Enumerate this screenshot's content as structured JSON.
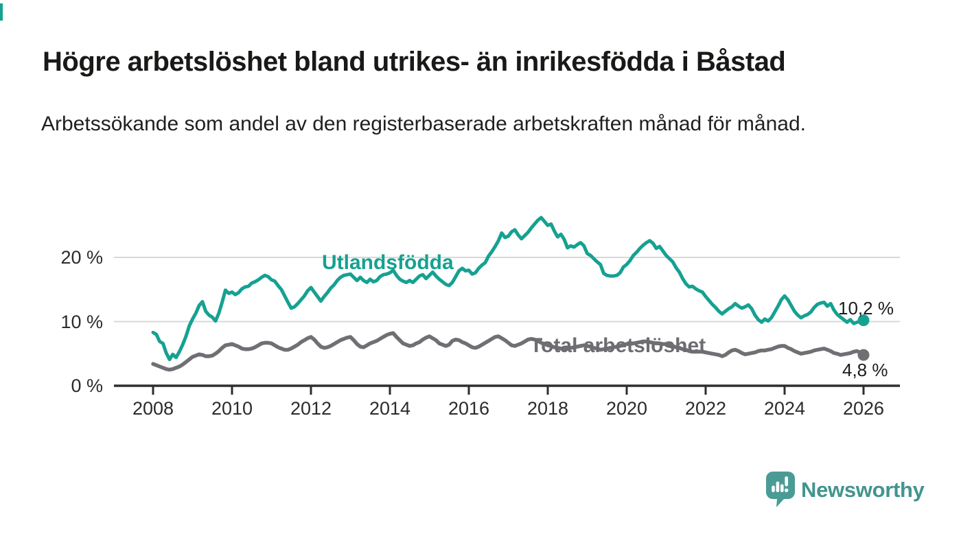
{
  "header": {
    "title": "Högre arbetslöshet bland utrikes- än inrikesfödda i Båstad",
    "subtitle": "Arbetssökande som andel av den registerbaserade arbetskraften månad för månad."
  },
  "colors": {
    "accent_teal": "#16a191",
    "line_gray": "#6f6f74",
    "axis": "#2e2e2e",
    "grid": "#d8d8d8",
    "text": "#191917"
  },
  "chart_data": {
    "type": "line",
    "title": "Högre arbetslöshet bland utrikes- än inrikesfödda i Båstad",
    "xlabel": "",
    "ylabel": "",
    "grid": "horizontal",
    "legend_position": "inline-labels",
    "x_unit": "year (monthly data)",
    "x_start": 2008,
    "x_step": 0.0833333,
    "xlim": [
      2007,
      2026.95
    ],
    "ylim": [
      0,
      27.5
    ],
    "x_ticks": [
      {
        "year": 2008,
        "label": "2008"
      },
      {
        "year": 2010,
        "label": "2010"
      },
      {
        "year": 2012,
        "label": "2012"
      },
      {
        "year": 2014,
        "label": "2014"
      },
      {
        "year": 2016,
        "label": "2016"
      },
      {
        "year": 2018,
        "label": "2018"
      },
      {
        "year": 2020,
        "label": "2020"
      },
      {
        "year": 2022,
        "label": "2022"
      },
      {
        "year": 2024,
        "label": "2024"
      },
      {
        "year": 2026,
        "label": "2026"
      }
    ],
    "y_ticks": [
      {
        "value": 0,
        "label": "0 %"
      },
      {
        "value": 10,
        "label": "10 %"
      },
      {
        "value": 20,
        "label": "20 %"
      }
    ],
    "series": [
      {
        "name": "Utlandsfödda",
        "color": "#16a191",
        "end_label": "10,2 %",
        "end_value": 10.2,
        "values": [
          8.3,
          8.0,
          6.9,
          6.6,
          5.1,
          4.1,
          4.9,
          4.4,
          5.3,
          6.4,
          7.7,
          9.3,
          10.4,
          11.3,
          12.5,
          13.1,
          11.6,
          11.0,
          10.7,
          10.1,
          11.3,
          13.0,
          14.9,
          14.4,
          14.6,
          14.2,
          14.5,
          15.1,
          15.4,
          15.5,
          16.0,
          16.2,
          16.5,
          16.9,
          17.2,
          17.0,
          16.5,
          16.3,
          15.6,
          15.0,
          14.0,
          13.0,
          12.1,
          12.3,
          12.8,
          13.4,
          14.0,
          14.8,
          15.3,
          14.6,
          13.9,
          13.2,
          13.9,
          14.5,
          15.2,
          15.7,
          16.4,
          16.9,
          17.2,
          17.3,
          17.4,
          16.9,
          16.4,
          16.9,
          16.4,
          16.1,
          16.6,
          16.2,
          16.4,
          17.0,
          17.3,
          17.4,
          17.6,
          18.0,
          17.2,
          16.6,
          16.3,
          16.1,
          16.4,
          16.1,
          16.6,
          17.1,
          17.3,
          16.7,
          17.2,
          17.7,
          17.1,
          16.6,
          16.2,
          15.8,
          15.6,
          16.1,
          17.0,
          17.9,
          18.3,
          17.9,
          18.0,
          17.4,
          17.6,
          18.3,
          18.8,
          19.2,
          20.2,
          20.9,
          21.7,
          22.6,
          23.8,
          23.1,
          23.3,
          24.0,
          24.3,
          23.5,
          22.9,
          23.4,
          23.9,
          24.6,
          25.2,
          25.8,
          26.2,
          25.6,
          25.0,
          25.2,
          24.1,
          23.2,
          23.6,
          22.8,
          21.5,
          21.8,
          21.6,
          22.0,
          22.3,
          21.8,
          20.6,
          20.3,
          19.8,
          19.3,
          18.9,
          17.5,
          17.2,
          17.1,
          17.1,
          17.2,
          17.6,
          18.5,
          18.9,
          19.5,
          20.3,
          20.8,
          21.4,
          21.9,
          22.3,
          22.6,
          22.2,
          21.4,
          21.7,
          21.0,
          20.3,
          19.8,
          19.3,
          18.4,
          17.7,
          16.7,
          15.9,
          15.4,
          15.5,
          15.1,
          14.8,
          14.6,
          13.9,
          13.3,
          12.7,
          12.2,
          11.6,
          11.2,
          11.6,
          12.0,
          12.3,
          12.8,
          12.4,
          12.1,
          12.3,
          12.6,
          12.0,
          11.0,
          10.3,
          9.9,
          10.4,
          10.1,
          10.6,
          11.5,
          12.4,
          13.4,
          14.0,
          13.4,
          12.5,
          11.6,
          11.0,
          10.6,
          10.9,
          11.1,
          11.5,
          12.2,
          12.7,
          12.9,
          13.0,
          12.4,
          12.8,
          11.8,
          11.1,
          10.7,
          10.3,
          9.9,
          10.3,
          9.7,
          9.9,
          10.0,
          10.2
        ]
      },
      {
        "name": "Total arbetslöshet",
        "color": "#6f6f74",
        "end_label": "4,8 %",
        "end_value": 4.8,
        "values": [
          3.4,
          3.2,
          3.0,
          2.8,
          2.6,
          2.5,
          2.6,
          2.8,
          3.0,
          3.3,
          3.7,
          4.1,
          4.5,
          4.7,
          4.9,
          4.8,
          4.6,
          4.6,
          4.7,
          5.0,
          5.4,
          5.9,
          6.3,
          6.4,
          6.5,
          6.3,
          6.1,
          5.8,
          5.7,
          5.7,
          5.8,
          6.0,
          6.3,
          6.6,
          6.7,
          6.7,
          6.6,
          6.3,
          6.0,
          5.8,
          5.6,
          5.6,
          5.8,
          6.1,
          6.4,
          6.8,
          7.1,
          7.4,
          7.6,
          7.2,
          6.6,
          6.1,
          5.9,
          6.0,
          6.2,
          6.5,
          6.8,
          7.1,
          7.3,
          7.5,
          7.6,
          7.1,
          6.5,
          6.1,
          6.0,
          6.3,
          6.6,
          6.8,
          7.0,
          7.3,
          7.6,
          7.9,
          8.1,
          8.2,
          7.6,
          7.1,
          6.6,
          6.4,
          6.2,
          6.3,
          6.6,
          6.8,
          7.2,
          7.5,
          7.7,
          7.4,
          7.1,
          6.6,
          6.4,
          6.2,
          6.4,
          7.0,
          7.2,
          7.1,
          6.8,
          6.6,
          6.3,
          6.0,
          5.9,
          6.1,
          6.4,
          6.7,
          7.0,
          7.3,
          7.6,
          7.7,
          7.4,
          7.1,
          6.7,
          6.3,
          6.2,
          6.4,
          6.6,
          6.9,
          7.2,
          7.3,
          7.2,
          7.0,
          6.7,
          6.5,
          6.3,
          6.2,
          6.0,
          5.9,
          5.8,
          5.7,
          5.8,
          5.9,
          6.0,
          6.1,
          6.2,
          6.3,
          6.2,
          6.1,
          5.9,
          5.8,
          5.6,
          5.7,
          5.8,
          5.9,
          6.0,
          6.1,
          6.2,
          6.4,
          6.5,
          6.5,
          6.6,
          6.7,
          6.8,
          6.9,
          6.9,
          6.8,
          6.7,
          6.6,
          6.6,
          6.5,
          6.5,
          6.4,
          6.2,
          6.0,
          5.9,
          5.7,
          5.6,
          5.4,
          5.3,
          5.3,
          5.3,
          5.3,
          5.2,
          5.1,
          5.0,
          4.9,
          4.8,
          4.6,
          4.8,
          5.2,
          5.5,
          5.6,
          5.4,
          5.1,
          4.9,
          5.0,
          5.1,
          5.2,
          5.4,
          5.5,
          5.5,
          5.6,
          5.7,
          5.9,
          6.1,
          6.2,
          6.2,
          5.9,
          5.7,
          5.4,
          5.2,
          5.0,
          5.1,
          5.2,
          5.3,
          5.5,
          5.6,
          5.7,
          5.8,
          5.6,
          5.4,
          5.1,
          5.0,
          4.8,
          4.9,
          5.0,
          5.1,
          5.3,
          5.4,
          5.2,
          4.8
        ]
      }
    ]
  },
  "branding": {
    "logo_text": "Newsworthy",
    "logo_color": "#43948e"
  }
}
